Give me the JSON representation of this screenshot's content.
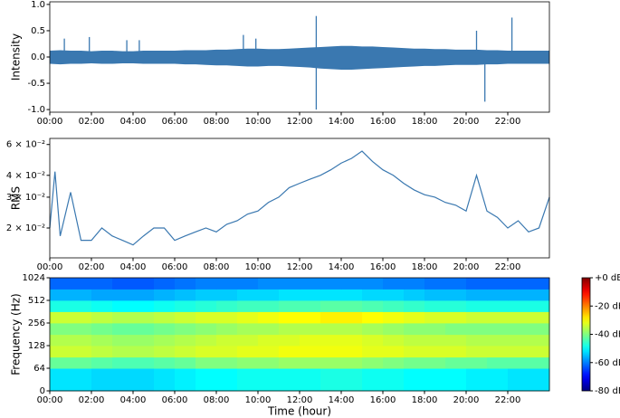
{
  "chart_data": [
    {
      "type": "envelope",
      "ylabel": "Intensity",
      "x": [
        0,
        0.5,
        1,
        1.5,
        2,
        2.5,
        3,
        3.5,
        4,
        4.5,
        5,
        5.5,
        6,
        6.5,
        7,
        7.5,
        8,
        8.5,
        9,
        9.5,
        10,
        10.5,
        11,
        11.5,
        12,
        12.5,
        13,
        13.5,
        14,
        14.5,
        15,
        15.5,
        16,
        16.5,
        17,
        17.5,
        18,
        18.5,
        19,
        19.5,
        20,
        20.5,
        21,
        21.5,
        22,
        22.5,
        23,
        23.5,
        24
      ],
      "upper": [
        0.12,
        0.13,
        0.12,
        0.12,
        0.11,
        0.12,
        0.12,
        0.11,
        0.11,
        0.12,
        0.12,
        0.12,
        0.12,
        0.13,
        0.13,
        0.13,
        0.14,
        0.14,
        0.15,
        0.16,
        0.16,
        0.15,
        0.15,
        0.16,
        0.17,
        0.18,
        0.19,
        0.2,
        0.21,
        0.21,
        0.2,
        0.2,
        0.19,
        0.18,
        0.17,
        0.16,
        0.16,
        0.15,
        0.15,
        0.14,
        0.14,
        0.14,
        0.13,
        0.13,
        0.12,
        0.12,
        0.12,
        0.12,
        0.12
      ],
      "lower": [
        -0.13,
        -0.14,
        -0.13,
        -0.13,
        -0.12,
        -0.13,
        -0.13,
        -0.12,
        -0.12,
        -0.13,
        -0.13,
        -0.13,
        -0.13,
        -0.14,
        -0.14,
        -0.15,
        -0.16,
        -0.16,
        -0.17,
        -0.18,
        -0.18,
        -0.17,
        -0.17,
        -0.18,
        -0.19,
        -0.2,
        -0.22,
        -0.23,
        -0.24,
        -0.24,
        -0.23,
        -0.22,
        -0.21,
        -0.2,
        -0.19,
        -0.18,
        -0.17,
        -0.17,
        -0.16,
        -0.15,
        -0.15,
        -0.15,
        -0.14,
        -0.14,
        -0.13,
        -0.13,
        -0.13,
        -0.13,
        -0.13
      ],
      "spike_x": [
        0.7,
        1.9,
        3.7,
        4.3,
        9.3,
        9.9,
        12.8,
        12.8,
        20.5,
        20.9,
        22.2
      ],
      "spike_values": [
        0.35,
        0.38,
        0.32,
        0.32,
        0.42,
        0.35,
        0.78,
        -1.0,
        0.5,
        -0.85,
        0.75
      ],
      "color": "#3a78b0",
      "xlim": [
        0,
        24
      ],
      "xticks": [
        {
          "value": 0,
          "label": "00:00"
        },
        {
          "value": 2,
          "label": "02:00"
        },
        {
          "value": 4,
          "label": "04:00"
        },
        {
          "value": 6,
          "label": "06:00"
        },
        {
          "value": 8,
          "label": "08:00"
        },
        {
          "value": 10,
          "label": "10:00"
        },
        {
          "value": 12,
          "label": "12:00"
        },
        {
          "value": 14,
          "label": "14:00"
        },
        {
          "value": 16,
          "label": "16:00"
        },
        {
          "value": 18,
          "label": "18:00"
        },
        {
          "value": 20,
          "label": "20:00"
        },
        {
          "value": 22,
          "label": "22:00"
        }
      ],
      "ylim": [
        -1.05,
        1.05
      ],
      "yticks": [
        {
          "value": -1,
          "label": "-1.0"
        },
        {
          "value": -0.5,
          "label": "-0.5"
        },
        {
          "value": 0,
          "label": "0.0"
        },
        {
          "value": 0.5,
          "label": "0.5"
        },
        {
          "value": 1,
          "label": "1.0"
        }
      ]
    },
    {
      "type": "line",
      "ylabel": "RMS",
      "log_scale": true,
      "x": [
        0,
        0.25,
        0.5,
        1,
        1.5,
        2,
        2.5,
        3,
        3.5,
        4,
        4.5,
        5,
        5.5,
        6,
        6.5,
        7,
        7.5,
        8,
        8.5,
        9,
        9.5,
        10,
        10.5,
        11,
        11.5,
        12,
        12.5,
        13,
        13.5,
        14,
        14.5,
        15,
        15.5,
        16,
        16.5,
        17,
        17.5,
        18,
        18.5,
        19,
        19.5,
        20,
        20.5,
        21,
        21.5,
        22,
        22.5,
        23,
        23.5,
        24
      ],
      "values": [
        0.02,
        0.042,
        0.018,
        0.032,
        0.017,
        0.017,
        0.02,
        0.018,
        0.017,
        0.016,
        0.018,
        0.02,
        0.02,
        0.017,
        0.018,
        0.019,
        0.02,
        0.019,
        0.021,
        0.022,
        0.024,
        0.025,
        0.028,
        0.03,
        0.034,
        0.036,
        0.038,
        0.04,
        0.043,
        0.047,
        0.05,
        0.055,
        0.048,
        0.043,
        0.04,
        0.036,
        0.033,
        0.031,
        0.03,
        0.028,
        0.027,
        0.025,
        0.04,
        0.025,
        0.023,
        0.02,
        0.022,
        0.019,
        0.02,
        0.03
      ],
      "color": "#3a78b0",
      "xlim": [
        0,
        24
      ],
      "xticks": [
        {
          "value": 0,
          "label": "00:00"
        },
        {
          "value": 2,
          "label": "02:00"
        },
        {
          "value": 4,
          "label": "04:00"
        },
        {
          "value": 6,
          "label": "06:00"
        },
        {
          "value": 8,
          "label": "08:00"
        },
        {
          "value": 10,
          "label": "10:00"
        },
        {
          "value": 12,
          "label": "12:00"
        },
        {
          "value": 14,
          "label": "14:00"
        },
        {
          "value": 16,
          "label": "16:00"
        },
        {
          "value": 18,
          "label": "18:00"
        },
        {
          "value": 20,
          "label": "20:00"
        },
        {
          "value": 22,
          "label": "22:00"
        }
      ],
      "ylim": [
        0.0135,
        0.065
      ],
      "yticks": [
        {
          "value": 0.02,
          "label": "2 × 10⁻²"
        },
        {
          "value": 0.03,
          "label": "3 × 10⁻²"
        },
        {
          "value": 0.04,
          "label": "4 × 10⁻²"
        },
        {
          "value": 0.06,
          "label": "6 × 10⁻²"
        }
      ]
    },
    {
      "type": "heatmap",
      "ylabel": "Frequency (Hz)",
      "xlabel": "Time (hour)",
      "yscale": "log2",
      "x_bins": [
        0,
        1,
        2,
        3,
        4,
        5,
        6,
        7,
        8,
        9,
        10,
        11,
        12,
        13,
        14,
        15,
        16,
        17,
        18,
        19,
        20,
        21,
        22,
        23,
        24
      ],
      "freq_bins": [
        0,
        32,
        64,
        90,
        128,
        180,
        256,
        362,
        512,
        724,
        1024
      ],
      "z": [
        [
          -52,
          -52,
          -53,
          -53,
          -53,
          -52,
          -51,
          -50,
          -50,
          -49,
          -49,
          -49,
          -49,
          -48,
          -48,
          -49,
          -49,
          -50,
          -50,
          -50,
          -51,
          -51,
          -52,
          -52
        ],
        [
          -38,
          -38,
          -39,
          -40,
          -40,
          -38,
          -36,
          -34,
          -33,
          -32,
          -32,
          -31,
          -31,
          -31,
          -31,
          -32,
          -33,
          -34,
          -35,
          -35,
          -36,
          -37,
          -38,
          -38
        ],
        [
          -42,
          -42,
          -43,
          -44,
          -44,
          -43,
          -42,
          -40,
          -40,
          -39,
          -39,
          -38,
          -38,
          -38,
          -38,
          -39,
          -40,
          -41,
          -41,
          -42,
          -42,
          -43,
          -43,
          -43
        ],
        [
          -34,
          -34,
          -35,
          -36,
          -36,
          -35,
          -34,
          -33,
          -33,
          -32,
          -32,
          -31,
          -31,
          -31,
          -31,
          -32,
          -32,
          -33,
          -33,
          -33,
          -34,
          -34,
          -34,
          -34
        ],
        [
          -36,
          -36,
          -37,
          -38,
          -38,
          -37,
          -36,
          -35,
          -34,
          -34,
          -33,
          -33,
          -32,
          -32,
          -32,
          -33,
          -34,
          -35,
          -35,
          -35,
          -36,
          -36,
          -36,
          -36
        ],
        [
          -40,
          -40,
          -41,
          -42,
          -42,
          -41,
          -40,
          -39,
          -38,
          -37,
          -37,
          -36,
          -36,
          -36,
          -36,
          -37,
          -38,
          -39,
          -39,
          -40,
          -40,
          -40,
          -40,
          -40
        ],
        [
          -34,
          -34,
          -35,
          -36,
          -36,
          -35,
          -34,
          -33,
          -33,
          -32,
          -31,
          -30,
          -30,
          -29,
          -29,
          -30,
          -31,
          -32,
          -33,
          -33,
          -34,
          -34,
          -34,
          -34
        ],
        [
          -48,
          -48,
          -49,
          -50,
          -50,
          -49,
          -48,
          -47,
          -46,
          -45,
          -45,
          -44,
          -44,
          -43,
          -43,
          -44,
          -45,
          -46,
          -47,
          -47,
          -48,
          -48,
          -48,
          -48
        ],
        [
          -56,
          -56,
          -57,
          -57,
          -57,
          -56,
          -55,
          -54,
          -54,
          -53,
          -53,
          -52,
          -52,
          -52,
          -52,
          -53,
          -53,
          -54,
          -55,
          -55,
          -56,
          -56,
          -56,
          -56
        ],
        [
          -62,
          -62,
          -62,
          -63,
          -63,
          -62,
          -61,
          -60,
          -60,
          -60,
          -59,
          -59,
          -59,
          -59,
          -59,
          -59,
          -60,
          -60,
          -61,
          -61,
          -62,
          -62,
          -62,
          -62
        ]
      ],
      "colormap": "jet",
      "clim": [
        -80,
        0
      ],
      "cticks": [
        {
          "value": 0,
          "label": "+0 dB"
        },
        {
          "value": -20,
          "label": "-20 dB"
        },
        {
          "value": -40,
          "label": "-40 dB"
        },
        {
          "value": -60,
          "label": "-60 dB"
        },
        {
          "value": -80,
          "label": "-80 dB"
        }
      ],
      "xlim": [
        0,
        24
      ],
      "xticks": [
        {
          "value": 0,
          "label": "00:00"
        },
        {
          "value": 2,
          "label": "02:00"
        },
        {
          "value": 4,
          "label": "04:00"
        },
        {
          "value": 6,
          "label": "06:00"
        },
        {
          "value": 8,
          "label": "08:00"
        },
        {
          "value": 10,
          "label": "10:00"
        },
        {
          "value": 12,
          "label": "12:00"
        },
        {
          "value": 14,
          "label": "14:00"
        },
        {
          "value": 16,
          "label": "16:00"
        },
        {
          "value": 18,
          "label": "18:00"
        },
        {
          "value": 20,
          "label": "20:00"
        },
        {
          "value": 22,
          "label": "22:00"
        }
      ],
      "ylim": [
        0,
        1024
      ],
      "yticks": [
        0,
        64,
        128,
        256,
        512,
        1024
      ]
    }
  ]
}
